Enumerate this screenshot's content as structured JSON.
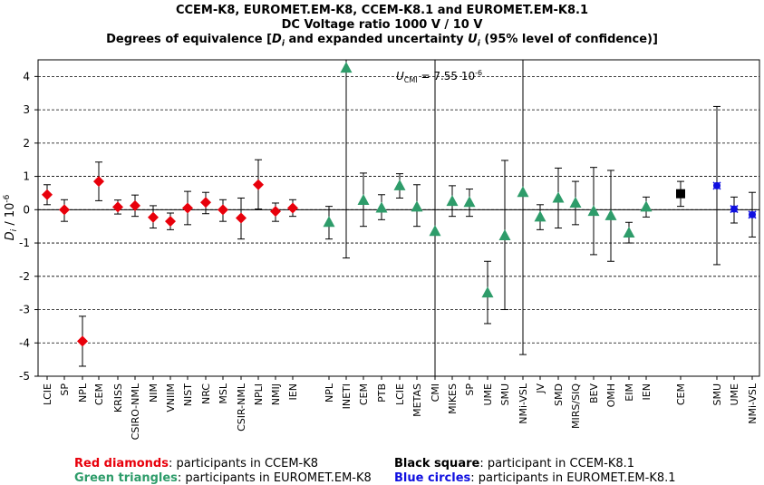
{
  "titles": {
    "line1": "CCEM-K8, EUROMET.EM-K8, CCEM-K8.1 and EUROMET.EM-K8.1",
    "line2": "DC Voltage ratio 1000 V / 10 V",
    "line3": "Degrees of equivalence [D i and expanded uncertainty U i (95% level of confidence)]"
  },
  "legend": [
    {
      "key": "Red diamonds",
      "text": ": participants in CCEM-K8",
      "color": "#e8000b"
    },
    {
      "key": "Green triangles",
      "text": ": participants in EUROMET.EM-K8",
      "color": "#2e9c6a"
    },
    {
      "key": "Black square",
      "text": ": participant in CCEM-K8.1",
      "color": "#000000"
    },
    {
      "key": "Blue circles",
      "text": ": participants in EUROMET.EM-K8.1",
      "color": "#1010e0"
    }
  ],
  "chart_data": {
    "type": "scatter",
    "ylabel": "D i / 10^-6",
    "ylim": [
      -5,
      4.5
    ],
    "yticks": [
      -5,
      -4,
      -3,
      -2,
      -1,
      0,
      1,
      2,
      3,
      4
    ],
    "grid": "horizontal dashed",
    "annotation": {
      "text": "U CMI = 7.55 10^-6",
      "vertical_lines_at": [
        "CMI",
        "NMi-VSL"
      ]
    },
    "series": [
      {
        "name": "Red diamonds",
        "marker": "diamond",
        "color": "#e8000b",
        "points": [
          {
            "label": "LCIE",
            "y": 0.45,
            "lo": 0.15,
            "hi": 0.75
          },
          {
            "label": "SP",
            "y": 0.0,
            "lo": -0.35,
            "hi": 0.3
          },
          {
            "label": "NPL",
            "y": -3.95,
            "lo": -4.7,
            "hi": -3.2
          },
          {
            "label": "CEM",
            "y": 0.85,
            "lo": 0.27,
            "hi": 1.43
          },
          {
            "label": "KRISS",
            "y": 0.08,
            "lo": -0.13,
            "hi": 0.29
          },
          {
            "label": "CSIRO-NML",
            "y": 0.12,
            "lo": -0.2,
            "hi": 0.44
          },
          {
            "label": "NIM",
            "y": -0.23,
            "lo": -0.55,
            "hi": 0.12
          },
          {
            "label": "VNIIM",
            "y": -0.35,
            "lo": -0.6,
            "hi": -0.1
          },
          {
            "label": "NIST",
            "y": 0.05,
            "lo": -0.45,
            "hi": 0.55
          },
          {
            "label": "NRC",
            "y": 0.22,
            "lo": -0.12,
            "hi": 0.52
          },
          {
            "label": "MSL",
            "y": 0.0,
            "lo": -0.35,
            "hi": 0.3
          },
          {
            "label": "CSIR-NML",
            "y": -0.25,
            "lo": -0.88,
            "hi": 0.35
          },
          {
            "label": "NPLI",
            "y": 0.75,
            "lo": 0.02,
            "hi": 1.5
          },
          {
            "label": "NMIJ",
            "y": -0.05,
            "lo": -0.35,
            "hi": 0.2
          },
          {
            "label": "IEN",
            "y": 0.05,
            "lo": -0.2,
            "hi": 0.3
          }
        ]
      },
      {
        "name": "Green triangles",
        "marker": "triangle",
        "color": "#2e9c6a",
        "points": [
          {
            "label": "NPL",
            "y": -0.38,
            "lo": -0.88,
            "hi": 0.1
          },
          {
            "label": "INETI",
            "y": 4.25,
            "lo": -1.45,
            "hi": 4.5
          },
          {
            "label": "CEM",
            "y": 0.28,
            "lo": -0.5,
            "hi": 1.1
          },
          {
            "label": "PTB",
            "y": 0.05,
            "lo": -0.3,
            "hi": 0.45
          },
          {
            "label": "LCIE",
            "y": 0.72,
            "lo": 0.35,
            "hi": 1.08
          },
          {
            "label": "METAS",
            "y": 0.08,
            "lo": -0.5,
            "hi": 0.75
          },
          {
            "label": "CMI",
            "y": -0.65,
            "lo": -5,
            "hi": 4.5
          },
          {
            "label": "MIKES",
            "y": 0.25,
            "lo": -0.2,
            "hi": 0.72
          },
          {
            "label": "SP",
            "y": 0.22,
            "lo": -0.2,
            "hi": 0.62
          },
          {
            "label": "UME",
            "y": -2.5,
            "lo": -3.42,
            "hi": -1.55
          },
          {
            "label": "SMU",
            "y": -0.78,
            "lo": -3.0,
            "hi": 1.48
          },
          {
            "label": "NMi-VSL",
            "y": 0.52,
            "lo": -4.35,
            "hi": 4.5
          },
          {
            "label": "JV",
            "y": -0.22,
            "lo": -0.6,
            "hi": 0.15
          },
          {
            "label": "SMD",
            "y": 0.35,
            "lo": -0.55,
            "hi": 1.25
          },
          {
            "label": "MIRS/SIQ",
            "y": 0.2,
            "lo": -0.45,
            "hi": 0.85
          },
          {
            "label": "BEV",
            "y": -0.05,
            "lo": -1.35,
            "hi": 1.27
          },
          {
            "label": "OMH",
            "y": -0.18,
            "lo": -1.55,
            "hi": 1.18
          },
          {
            "label": "EIM",
            "y": -0.7,
            "lo": -1.0,
            "hi": -0.38
          },
          {
            "label": "IEN",
            "y": 0.08,
            "lo": -0.22,
            "hi": 0.38
          }
        ]
      },
      {
        "name": "Black square",
        "marker": "square",
        "color": "#000000",
        "points": [
          {
            "label": "CEM",
            "y": 0.48,
            "lo": 0.1,
            "hi": 0.85
          }
        ]
      },
      {
        "name": "Blue circles",
        "marker": "circle",
        "color": "#1010e0",
        "points": [
          {
            "label": "SMU",
            "y": 0.72,
            "lo": -1.65,
            "hi": 3.1
          },
          {
            "label": "UME",
            "y": 0.02,
            "lo": -0.4,
            "hi": 0.38
          },
          {
            "label": "NMi-VSL",
            "y": -0.15,
            "lo": -0.82,
            "hi": 0.52
          }
        ]
      }
    ]
  }
}
